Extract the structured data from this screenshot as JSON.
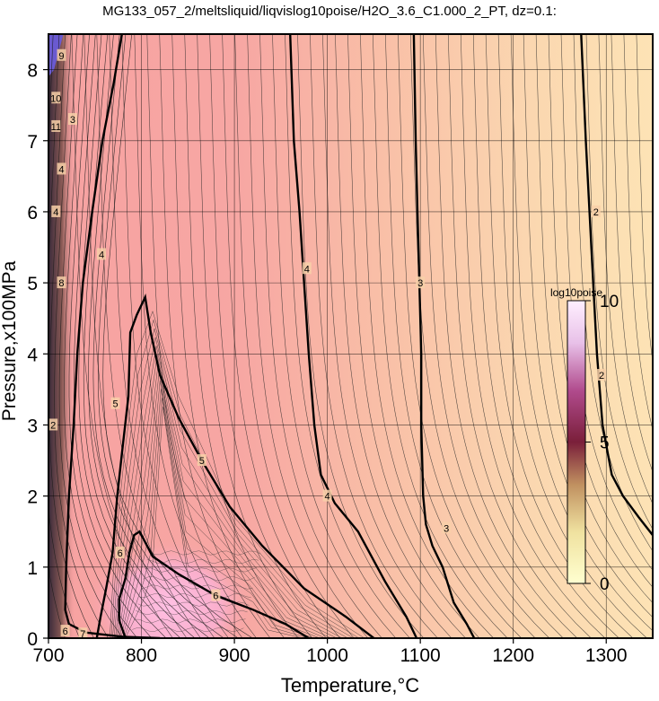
{
  "chart_data": {
    "type": "heatmap",
    "subtype": "filled-contour",
    "title": "MG133_057_2/meltsliquid/liqvislog10poise/H2O_3.6_C1.000_2_PT, dz=0.1:",
    "xlabel": "Temperature,°C",
    "ylabel": "Pressure,x100MPa",
    "xlim": [
      700,
      1350
    ],
    "ylim": [
      0,
      8.5
    ],
    "x_ticks": [
      700,
      800,
      900,
      1000,
      1100,
      1200,
      1300
    ],
    "y_ticks": [
      0,
      1,
      2,
      3,
      4,
      5,
      6,
      7,
      8
    ],
    "x_tick_labels": [
      "700",
      "800",
      "900",
      "1000",
      "1100",
      "1200",
      "1300"
    ],
    "y_tick_labels": [
      "0",
      "1",
      "2",
      "3",
      "4",
      "5",
      "6",
      "7",
      "8"
    ],
    "grid": true,
    "contour_interval": 0.1,
    "colorbar": {
      "label": "log10poise",
      "range": [
        0,
        10
      ],
      "ticks": [
        0,
        5,
        10
      ],
      "tick_labels": [
        "0",
        "5",
        "10"
      ],
      "colors": [
        "#ffffd0",
        "#e8d39c",
        "#b07a5a",
        "#7a1f3a",
        "#b04a8c",
        "#e8c0e8",
        "#fff0ff"
      ]
    },
    "major_contours": [
      {
        "level": 2,
        "label": "2",
        "points": [
          [
            1273,
            8.5
          ],
          [
            1278,
            7.0
          ],
          [
            1282,
            6.0
          ],
          [
            1286,
            5.0
          ],
          [
            1290,
            4.0
          ],
          [
            1296,
            3.0
          ],
          [
            1306,
            2.3
          ],
          [
            1318,
            2.0
          ],
          [
            1335,
            1.7
          ],
          [
            1350,
            1.45
          ]
        ]
      },
      {
        "level": 3,
        "label": "3",
        "points": [
          [
            1093,
            8.5
          ],
          [
            1095,
            7.0
          ],
          [
            1097,
            6.0
          ],
          [
            1099,
            5.0
          ],
          [
            1101,
            4.0
          ],
          [
            1101,
            3.0
          ],
          [
            1103,
            2.0
          ],
          [
            1106,
            1.6
          ],
          [
            1113,
            1.3
          ],
          [
            1124,
            1.0
          ],
          [
            1136,
            0.5
          ],
          [
            1150,
            0.2
          ],
          [
            1158,
            0.0
          ]
        ]
      },
      {
        "level": 4,
        "label": "4",
        "points": [
          [
            960,
            8.5
          ],
          [
            964,
            7.0
          ],
          [
            970,
            6.0
          ],
          [
            975,
            5.0
          ],
          [
            980,
            4.0
          ],
          [
            986,
            3.0
          ],
          [
            993,
            2.3
          ],
          [
            1008,
            1.9
          ],
          [
            1033,
            1.5
          ],
          [
            1062,
            0.8
          ],
          [
            1085,
            0.3
          ],
          [
            1096,
            0.0
          ]
        ]
      },
      {
        "level": 4,
        "label": "4",
        "points": [
          [
            779,
            8.5
          ],
          [
            770,
            7.8
          ],
          [
            758,
            7.0
          ],
          [
            747,
            6.0
          ],
          [
            737,
            5.0
          ],
          [
            731,
            4.0
          ],
          [
            727,
            3.0
          ],
          [
            722,
            2.0
          ],
          [
            719,
            1.0
          ],
          [
            718,
            0.4
          ],
          [
            722,
            0.2
          ],
          [
            740,
            0.08
          ],
          [
            780,
            0.02
          ],
          [
            820,
            0.0
          ]
        ]
      },
      {
        "level": 5,
        "label": "5",
        "points": [
          [
            752,
            0.0
          ],
          [
            756,
            0.3
          ],
          [
            762,
            0.7
          ],
          [
            769,
            1.2
          ],
          [
            774,
            2.0
          ],
          [
            779,
            2.6
          ],
          [
            786,
            3.4
          ],
          [
            788,
            4.3
          ],
          [
            795,
            4.55
          ],
          [
            804,
            4.8
          ],
          [
            810,
            4.3
          ],
          [
            820,
            3.7
          ],
          [
            840,
            3.1
          ],
          [
            865,
            2.5
          ],
          [
            895,
            1.85
          ],
          [
            930,
            1.3
          ],
          [
            975,
            0.7
          ],
          [
            1020,
            0.3
          ],
          [
            1050,
            0.0
          ]
        ]
      },
      {
        "level": 6,
        "label": "6",
        "points": [
          [
            783,
            0.0
          ],
          [
            776,
            0.25
          ],
          [
            776,
            0.55
          ],
          [
            783,
            0.85
          ],
          [
            787,
            1.2
          ],
          [
            792,
            1.45
          ],
          [
            798,
            1.5
          ],
          [
            812,
            1.15
          ],
          [
            840,
            0.9
          ],
          [
            880,
            0.6
          ],
          [
            920,
            0.4
          ],
          [
            955,
            0.2
          ],
          [
            980,
            0.0
          ]
        ]
      }
    ],
    "inline_labels": [
      "3",
      "4",
      "8",
      "2",
      "11",
      "10",
      "9",
      "6",
      "7",
      "4",
      "4",
      "5",
      "5",
      "6",
      "6",
      "4",
      "3",
      "3",
      "4",
      "2",
      "2"
    ]
  }
}
